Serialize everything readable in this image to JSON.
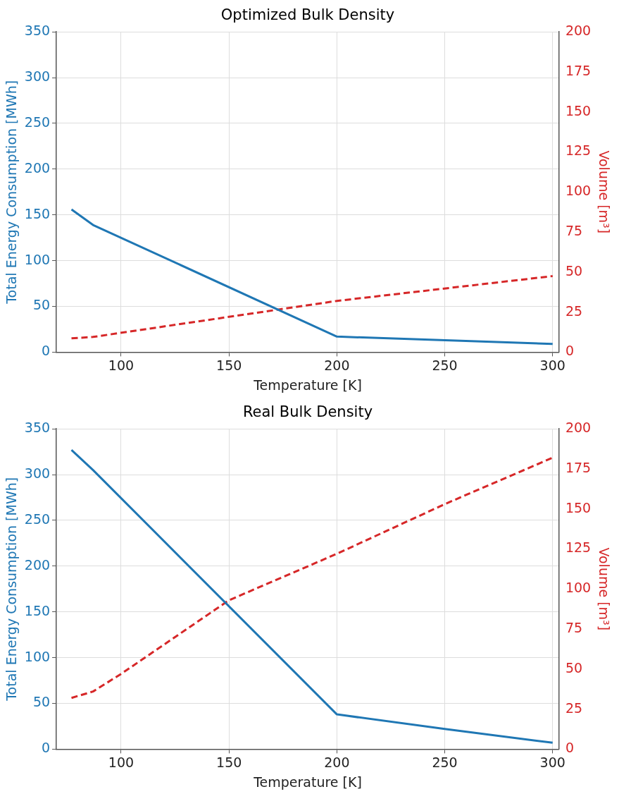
{
  "chart_data": [
    {
      "type": "line",
      "title": "Optimized Bulk Density",
      "xlabel": "Temperature [K]",
      "ylabel": "Total Energy Consumption [MWh]",
      "y2label": "Volume [m³]",
      "xlim": [
        70,
        303
      ],
      "xticks": [
        100,
        150,
        200,
        250,
        300
      ],
      "ylim": [
        0,
        350
      ],
      "yticks": [
        0,
        50,
        100,
        150,
        200,
        250,
        300,
        350
      ],
      "y2lim": [
        0,
        200
      ],
      "y2ticks": [
        0,
        25,
        50,
        75,
        100,
        125,
        150,
        175,
        200
      ],
      "grid": true,
      "series": [
        {
          "color": "#1f77b4",
          "x": [
            77,
            87,
            200,
            300
          ],
          "values": [
            156,
            139,
            17,
            9
          ],
          "line_style": "solid"
        },
        {
          "color": "#d62728",
          "x": [
            77,
            87,
            200,
            300
          ],
          "values": [
            8.6,
            9.5,
            32,
            47.5
          ],
          "axis": "y2",
          "line_style": "dashed"
        }
      ]
    },
    {
      "type": "line",
      "title": "Real Bulk Density",
      "xlabel": "Temperature [K]",
      "ylabel": "Total Energy Consumption [MWh]",
      "y2label": "Volume [m³]",
      "xlim": [
        70,
        303
      ],
      "xticks": [
        100,
        150,
        200,
        250,
        300
      ],
      "ylim": [
        0,
        350
      ],
      "yticks": [
        0,
        50,
        100,
        150,
        200,
        250,
        300,
        350
      ],
      "y2lim": [
        0,
        200
      ],
      "y2ticks": [
        0,
        25,
        50,
        75,
        100,
        125,
        150,
        175,
        200
      ],
      "grid": true,
      "series": [
        {
          "color": "#1f77b4",
          "x": [
            77,
            87,
            200,
            250,
            300
          ],
          "values": [
            327,
            305,
            38,
            22,
            7
          ],
          "line_style": "solid"
        },
        {
          "color": "#d62728",
          "x": [
            77,
            87,
            100,
            150,
            200,
            250,
            300
          ],
          "values": [
            32,
            36,
            47,
            93,
            122,
            153,
            182
          ],
          "axis": "y2",
          "line_style": "dashed"
        }
      ]
    }
  ]
}
